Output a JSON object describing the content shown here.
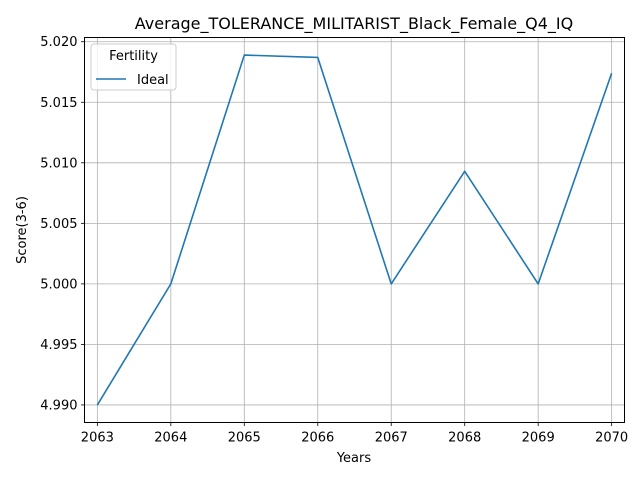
{
  "chart_data": {
    "type": "line",
    "title": "Average_TOLERANCE_MILITARIST_Black_Female_Q4_IQ",
    "xlabel": "Years",
    "ylabel": "Score(3-6)",
    "x": [
      2063,
      2064,
      2065,
      2066,
      2067,
      2068,
      2069,
      2070
    ],
    "xlim": [
      2062.825,
      2070.175
    ],
    "ylim": [
      4.98855,
      5.02035
    ],
    "yticks": [
      4.99,
      4.995,
      5.0,
      5.005,
      5.01,
      5.015,
      5.02
    ],
    "ytick_labels": [
      "4.990",
      "4.995",
      "5.000",
      "5.005",
      "5.010",
      "5.015",
      "5.020"
    ],
    "xtick_labels": [
      "2063",
      "2064",
      "2065",
      "2066",
      "2067",
      "2068",
      "2069",
      "2070"
    ],
    "grid": true,
    "legend": {
      "title": "Fertility",
      "position": "top-left"
    },
    "series": [
      {
        "name": "Ideal",
        "color": "#1f77b4",
        "values": [
          4.99,
          5.0,
          5.0189,
          5.0187,
          5.0,
          5.0093,
          5.0,
          5.0174
        ]
      }
    ]
  }
}
